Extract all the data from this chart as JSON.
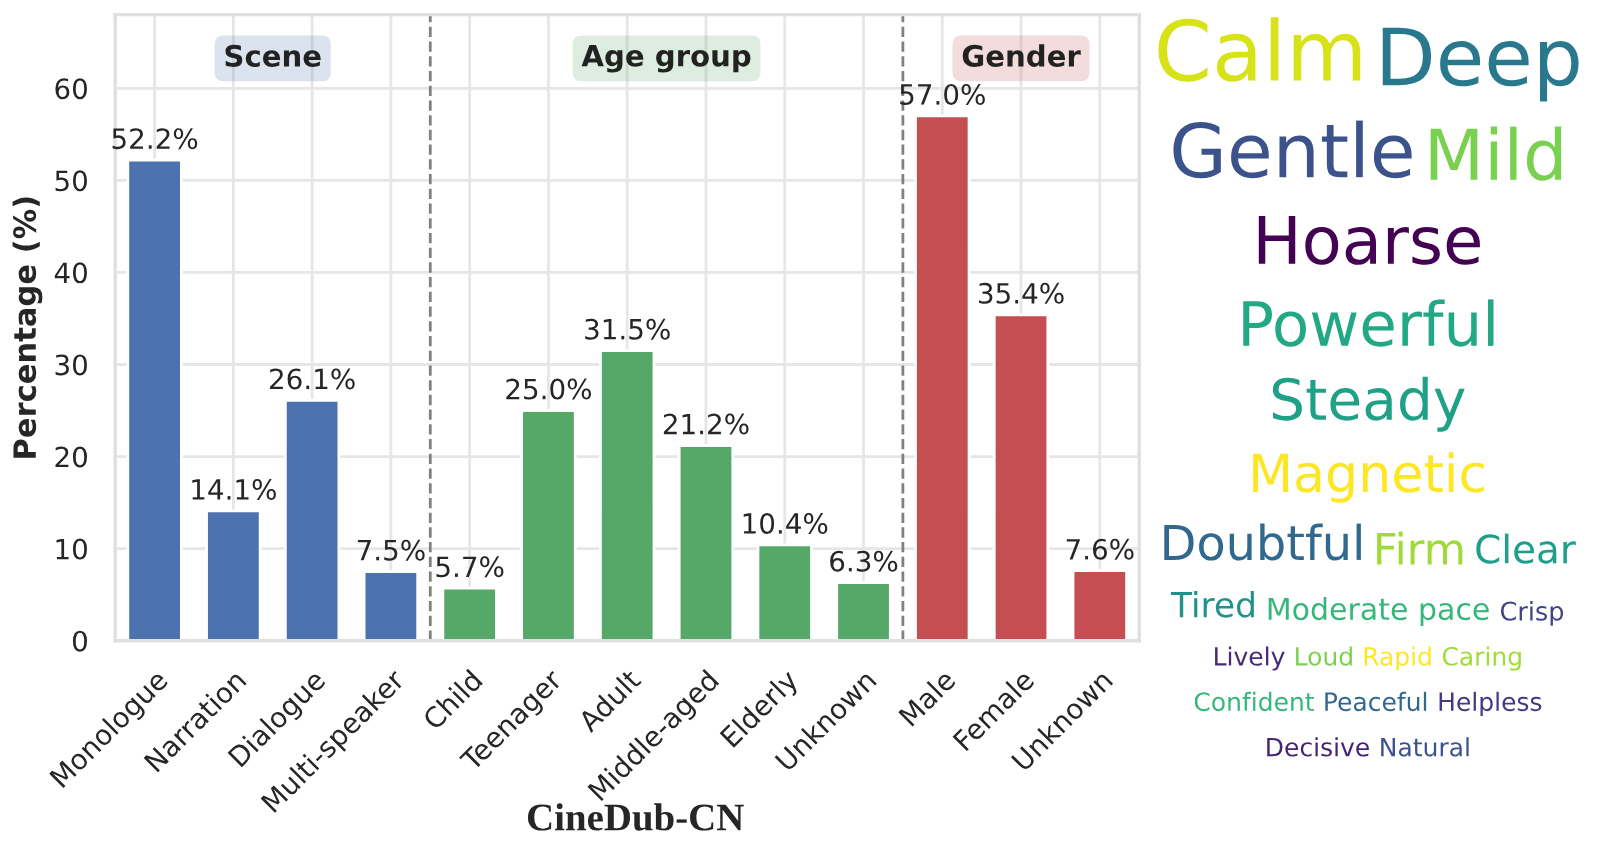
{
  "chart_data": [
    {
      "type": "bar",
      "title": "CineDub-CN",
      "ylabel": "Percentage (%)",
      "categories": [
        "Monologue",
        "Narration",
        "Dialogue",
        "Multi-speaker",
        "Child",
        "Teenager",
        "Adult",
        "Middle-aged",
        "Elderly",
        "Unknown",
        "Male",
        "Female",
        "Unknown"
      ],
      "values": [
        52.2,
        14.1,
        26.1,
        7.5,
        5.7,
        25.0,
        31.5,
        21.2,
        10.4,
        6.3,
        57.0,
        35.4,
        7.6
      ],
      "value_labels": [
        "52.2%",
        "14.1%",
        "26.1%",
        "7.5%",
        "5.7%",
        "25.0%",
        "31.5%",
        "21.2%",
        "10.4%",
        "6.3%",
        "57.0%",
        "35.4%",
        "7.6%"
      ],
      "colors": [
        "#4c72b0",
        "#4c72b0",
        "#4c72b0",
        "#4c72b0",
        "#55a868",
        "#55a868",
        "#55a868",
        "#55a868",
        "#55a868",
        "#55a868",
        "#c44e52",
        "#c44e52",
        "#c44e52"
      ],
      "ylim": [
        0,
        68
      ],
      "yticks": [
        0,
        10,
        20,
        30,
        40,
        50,
        60
      ],
      "grid": true,
      "annotations": [
        "Scene",
        "Age group",
        "Gender"
      ]
    },
    {
      "type": "other",
      "annotations": [
        "Calm",
        "Deep",
        "Gentle",
        "Mild",
        "Hoarse",
        "Powerful",
        "Steady",
        "Magnetic",
        "Doubtful",
        "Firm",
        "Clear",
        "Tired",
        "Moderate pace",
        "Crisp",
        "Lively",
        "Loud",
        "Rapid",
        "Caring",
        "Confident",
        "Peaceful",
        "Helpless",
        "Decisive",
        "Natural"
      ],
      "colors": [
        "#d8e219",
        "#2a788e",
        "#3b528b",
        "#7ad151",
        "#440154",
        "#22a884",
        "#1fa187",
        "#fde725",
        "#31688e",
        "#a0da39",
        "#1f9e89",
        "#21918c",
        "#35b779",
        "#414487",
        "#482878",
        "#7ad151",
        "#fde725",
        "#a0da39",
        "#35b779",
        "#31688e",
        "#443983",
        "#482475",
        "#3b528b"
      ]
    }
  ]
}
